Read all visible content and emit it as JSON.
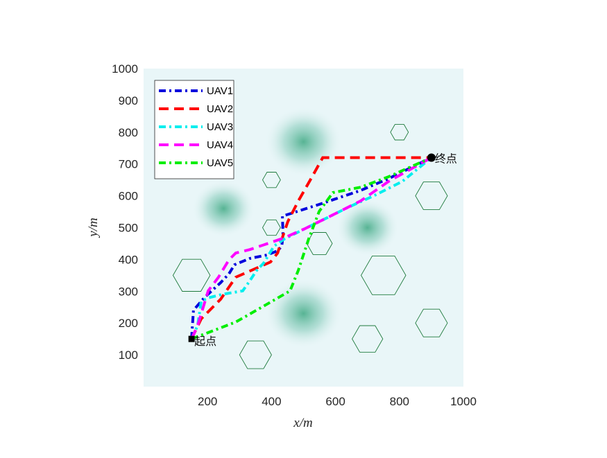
{
  "chart_data": {
    "type": "line",
    "title": "",
    "xlabel": "x/m",
    "ylabel": "y/m",
    "xlim": [
      0,
      1000
    ],
    "ylim": [
      0,
      1000
    ],
    "xticks": [
      200,
      400,
      600,
      800,
      1000
    ],
    "yticks": [
      100,
      200,
      300,
      400,
      500,
      600,
      700,
      800,
      900,
      1000
    ],
    "legend_position": "top-left",
    "start": {
      "label": "起点",
      "x": 150,
      "y": 150
    },
    "end": {
      "label": "终点",
      "x": 900,
      "y": 720
    },
    "series": [
      {
        "name": "UAV1",
        "color": "#0000dd",
        "dash": "dashdot",
        "points": [
          [
            150,
            150
          ],
          [
            156,
            240
          ],
          [
            191,
            281
          ],
          [
            241,
            327
          ],
          [
            267,
            355
          ],
          [
            284,
            383
          ],
          [
            332,
            403
          ],
          [
            386,
            414
          ],
          [
            419,
            427
          ],
          [
            432,
            442
          ],
          [
            436,
            475
          ],
          [
            434,
            536
          ],
          [
            549,
            573
          ],
          [
            679,
            617
          ],
          [
            766,
            654
          ],
          [
            900,
            720
          ]
        ]
      },
      {
        "name": "UAV2",
        "color": "#ff0000",
        "dash": "dashed",
        "points": [
          [
            150,
            150
          ],
          [
            180,
            213
          ],
          [
            241,
            275
          ],
          [
            288,
            344
          ],
          [
            397,
            392
          ],
          [
            419,
            420
          ],
          [
            436,
            475
          ],
          [
            451,
            519
          ],
          [
            484,
            584
          ],
          [
            527,
            660
          ],
          [
            560,
            720
          ],
          [
            900,
            720
          ]
        ]
      },
      {
        "name": "UAV3",
        "color": "#00eeee",
        "dash": "dashdot",
        "points": [
          [
            150,
            150
          ],
          [
            169,
            192
          ],
          [
            180,
            268
          ],
          [
            202,
            279
          ],
          [
            245,
            290
          ],
          [
            310,
            301
          ],
          [
            332,
            333
          ],
          [
            354,
            366
          ],
          [
            375,
            388
          ],
          [
            408,
            442
          ],
          [
            440,
            464
          ],
          [
            505,
            497
          ],
          [
            570,
            529
          ],
          [
            636,
            562
          ],
          [
            722,
            601
          ],
          [
            809,
            645
          ],
          [
            900,
            720
          ]
        ]
      },
      {
        "name": "UAV4",
        "color": "#ff00ff",
        "dash": "dashed",
        "points": [
          [
            150,
            150
          ],
          [
            169,
            192
          ],
          [
            202,
            301
          ],
          [
            234,
            344
          ],
          [
            267,
            399
          ],
          [
            288,
            420
          ],
          [
            332,
            431
          ],
          [
            397,
            453
          ],
          [
            440,
            468
          ],
          [
            505,
            497
          ],
          [
            592,
            540
          ],
          [
            679,
            584
          ],
          [
            766,
            645
          ],
          [
            900,
            720
          ]
        ]
      },
      {
        "name": "UAV5",
        "color": "#00ee00",
        "dash": "dashdot",
        "points": [
          [
            150,
            150
          ],
          [
            202,
            170
          ],
          [
            288,
            203
          ],
          [
            375,
            253
          ],
          [
            458,
            301
          ],
          [
            484,
            366
          ],
          [
            516,
            464
          ],
          [
            549,
            551
          ],
          [
            592,
            610
          ],
          [
            679,
            627
          ],
          [
            766,
            660
          ],
          [
            900,
            720
          ]
        ]
      }
    ],
    "obstacles": [
      [
        150,
        350,
        58
      ],
      [
        400,
        650,
        28
      ],
      [
        400,
        500,
        28
      ],
      [
        550,
        450,
        40
      ],
      [
        750,
        350,
        70
      ],
      [
        800,
        800,
        28
      ],
      [
        900,
        600,
        50
      ],
      [
        900,
        200,
        50
      ],
      [
        700,
        150,
        48
      ],
      [
        350,
        100,
        50
      ]
    ],
    "threat_peaks": [
      [
        500,
        770,
        110
      ],
      [
        500,
        230,
        110
      ],
      [
        250,
        560,
        90
      ],
      [
        700,
        500,
        90
      ]
    ]
  }
}
